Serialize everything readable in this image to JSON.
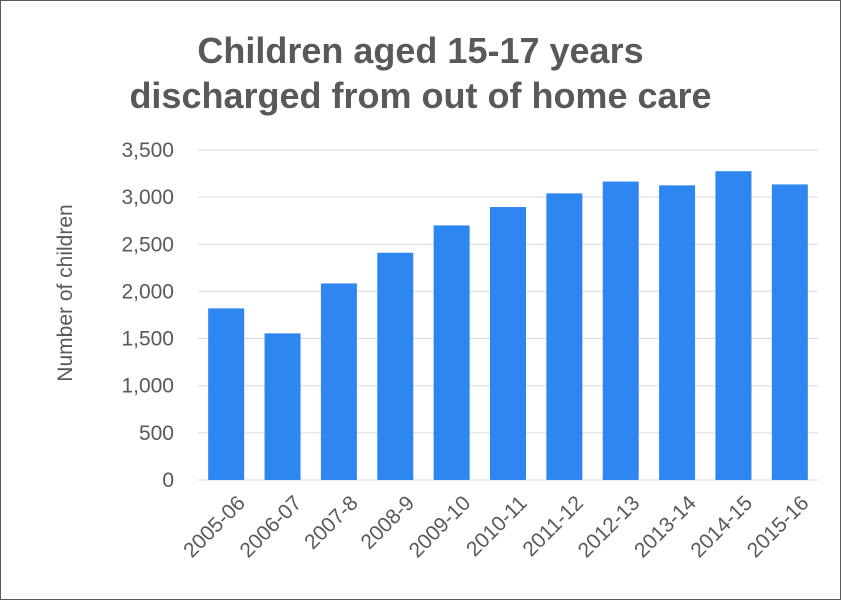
{
  "chart_data": {
    "type": "bar",
    "title_lines": [
      "Children aged 15-17 years",
      "discharged from out of home care"
    ],
    "xlabel": "",
    "ylabel": "Number of children",
    "categories": [
      "2005-06",
      "2006-07",
      "2007-8",
      "2008-9",
      "2009-10",
      "2010-11",
      "2011-12",
      "2012-13",
      "2013-14",
      "2014-15",
      "2015-16"
    ],
    "series": [
      {
        "values": [
          1820,
          1555,
          2085,
          2410,
          2700,
          2895,
          3040,
          3165,
          3125,
          3275,
          3135
        ]
      }
    ],
    "ylim": [
      0,
      3500
    ],
    "yticks": [
      0,
      500,
      1000,
      1500,
      2000,
      2500,
      3000,
      3500
    ],
    "ytick_labels": [
      "0",
      "500",
      "1,000",
      "1,500",
      "2,000",
      "2,500",
      "3,000",
      "3,500"
    ],
    "grid": true,
    "bar_color": "#2e86f0",
    "grid_color": "#d9d9d9",
    "text_color": "#595959"
  }
}
